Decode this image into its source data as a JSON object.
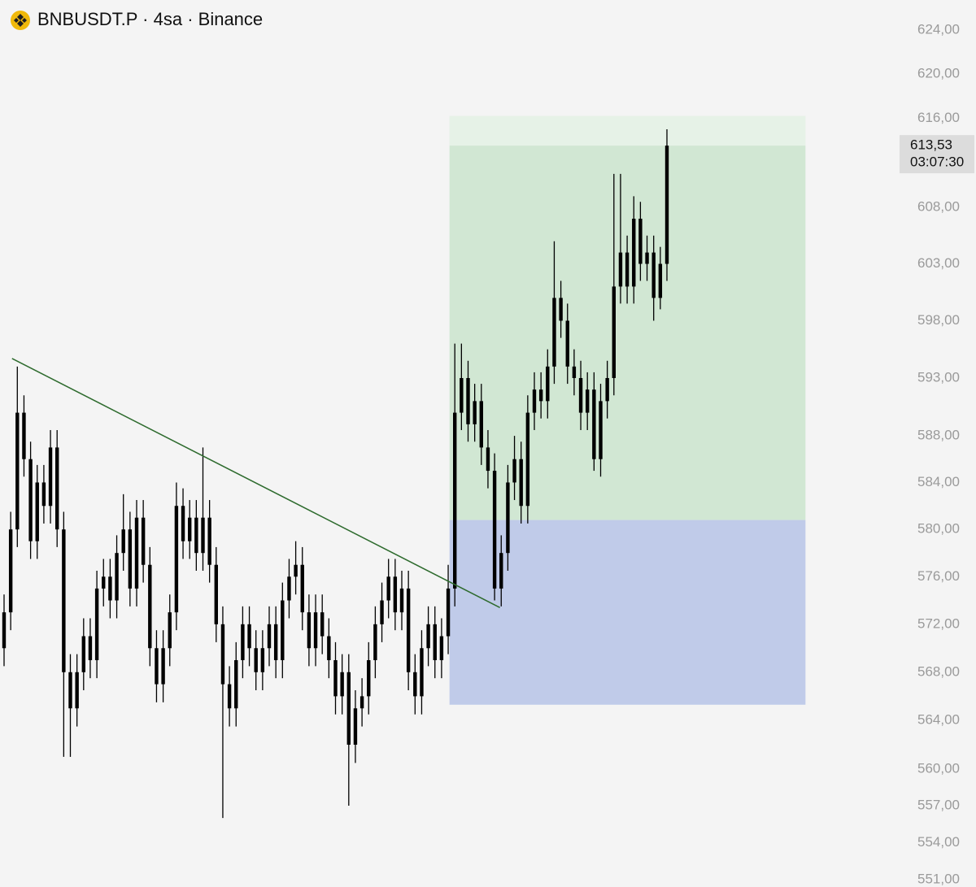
{
  "chart_data": {
    "type": "candlestick",
    "title": "BNBUSDT.P · 4sa · Binance",
    "log_scale": true,
    "ylim": [
      551,
      624
    ],
    "yticks": [
      {
        "value": 624,
        "label": "624,00"
      },
      {
        "value": 620,
        "label": "620,00"
      },
      {
        "value": 616,
        "label": "616,00"
      },
      {
        "value": 608,
        "label": "608,00"
      },
      {
        "value": 603,
        "label": "603,00"
      },
      {
        "value": 598,
        "label": "598,00"
      },
      {
        "value": 593,
        "label": "593,00"
      },
      {
        "value": 588,
        "label": "588,00"
      },
      {
        "value": 584,
        "label": "584,00"
      },
      {
        "value": 580,
        "label": "580,00"
      },
      {
        "value": 576,
        "label": "576,00"
      },
      {
        "value": 572,
        "label": "572,00"
      },
      {
        "value": 568,
        "label": "568,00"
      },
      {
        "value": 564,
        "label": "564,00"
      },
      {
        "value": 560,
        "label": "560,00"
      },
      {
        "value": 557,
        "label": "557,00"
      },
      {
        "value": 554,
        "label": "554,00"
      },
      {
        "value": 551,
        "label": "551,00"
      }
    ],
    "last_price": {
      "value": 613.53,
      "label": "613,53",
      "countdown": "03:07:30"
    },
    "color": "#000000",
    "open": [
      570,
      573,
      580,
      590,
      586,
      579,
      584,
      582,
      587,
      580,
      568,
      565,
      568,
      571,
      569,
      575,
      576,
      574,
      578,
      580,
      575,
      581,
      577,
      570,
      567,
      570,
      573,
      582,
      579,
      581,
      578,
      581,
      577,
      572,
      567,
      565,
      569,
      572,
      570,
      568,
      570,
      572,
      569,
      574,
      576,
      577,
      573,
      570,
      573,
      571,
      569,
      566,
      568,
      562,
      565,
      566,
      569,
      572,
      574,
      576,
      573,
      575,
      568,
      566,
      570,
      572,
      569,
      571,
      575,
      590,
      593,
      589,
      591,
      587,
      585,
      575,
      578,
      584,
      586,
      582,
      590,
      592,
      591,
      594,
      600,
      598,
      594,
      593,
      590,
      592,
      586,
      591,
      593,
      601,
      604,
      601,
      607,
      603,
      604,
      600,
      603
    ],
    "high": [
      574.5,
      581.5,
      594,
      591.5,
      587.5,
      585.5,
      585.5,
      588.5,
      588.5,
      581.5,
      569.5,
      569.5,
      572.5,
      572.5,
      576.5,
      577.5,
      577.5,
      579.5,
      583,
      581.5,
      582.5,
      582.5,
      578.5,
      571.5,
      571.5,
      574.5,
      584,
      583.5,
      582.5,
      582.5,
      587,
      582.5,
      578.5,
      573.5,
      568.5,
      570.5,
      573.5,
      573.5,
      571.5,
      571.5,
      573.5,
      573.5,
      575.5,
      577.5,
      579,
      578.5,
      574.5,
      574.5,
      574.5,
      572.5,
      570.5,
      569.5,
      569.5,
      566.5,
      567.5,
      570.5,
      573.5,
      575.5,
      577.5,
      577.5,
      576.5,
      576.5,
      569.5,
      571.5,
      573.5,
      573.5,
      572.5,
      577,
      596,
      596,
      594.5,
      592.5,
      592.5,
      588.5,
      586.5,
      579.5,
      585.5,
      588,
      587.5,
      591.5,
      593.5,
      593.5,
      595.5,
      605,
      601.5,
      599.5,
      595.5,
      594.5,
      593.5,
      593.5,
      592.5,
      594.5,
      611,
      611,
      605.5,
      609,
      608.5,
      605.5,
      605.5,
      604.5,
      615
    ],
    "low": [
      568.5,
      571.5,
      578.5,
      584.5,
      577.5,
      577.5,
      580.5,
      580.5,
      578.5,
      561,
      561,
      563.5,
      566.5,
      567.5,
      567.5,
      573.5,
      572.5,
      572.5,
      576.5,
      573.5,
      573.5,
      575.5,
      568.5,
      565.5,
      565.5,
      568.5,
      571.5,
      577.5,
      577.5,
      576.5,
      576.5,
      575.5,
      570.5,
      556,
      563.5,
      563.5,
      567.5,
      568.5,
      566.5,
      566.5,
      568.5,
      567.5,
      567.5,
      572.5,
      574.5,
      571.5,
      568.5,
      568.5,
      569.5,
      567.5,
      564.5,
      564.5,
      557,
      560.5,
      563.5,
      564.5,
      567.5,
      570.5,
      572.5,
      571.5,
      571.5,
      566.5,
      564.5,
      564.5,
      568.5,
      567.5,
      567.5,
      569.5,
      573.5,
      588.5,
      587.5,
      587.5,
      585.5,
      583.5,
      574,
      573.5,
      576.5,
      582.5,
      580.5,
      580.5,
      588.5,
      589.5,
      589.5,
      592.5,
      596.5,
      592.5,
      591.5,
      588.5,
      588.5,
      585,
      584.5,
      589.5,
      591.5,
      599.5,
      599.5,
      599.5,
      601.5,
      601.5,
      598,
      599,
      601.5
    ],
    "close": [
      573,
      580,
      590,
      586,
      579,
      584,
      582,
      587,
      580,
      568,
      565,
      568,
      571,
      569,
      575,
      576,
      574,
      578,
      580,
      575,
      581,
      577,
      570,
      567,
      570,
      573,
      582,
      579,
      581,
      578,
      581,
      577,
      572,
      567,
      565,
      569,
      572,
      570,
      568,
      570,
      572,
      569,
      574,
      576,
      577,
      573,
      570,
      573,
      571,
      569,
      566,
      568,
      562,
      565,
      566,
      569,
      572,
      574,
      576,
      573,
      575,
      568,
      566,
      570,
      572,
      569,
      571,
      575,
      590,
      593,
      589,
      591,
      587,
      585,
      575,
      578,
      584,
      586,
      582,
      590,
      592,
      591,
      594,
      600,
      598,
      594,
      593,
      590,
      592,
      586,
      591,
      593,
      601,
      604,
      601,
      607,
      603,
      604,
      600,
      603,
      613.53
    ],
    "trendline": {
      "x": [
        1.2,
        74.8
      ],
      "y": [
        594.7,
        573.4
      ],
      "color": "#2e6b2e"
    },
    "position": {
      "x": [
        67.2,
        120.9
      ],
      "target": 616.2,
      "entry": 580.8,
      "stop": 565.3,
      "profit_color": "#d1e7d3",
      "loss_color": "#c0cbe9"
    }
  }
}
